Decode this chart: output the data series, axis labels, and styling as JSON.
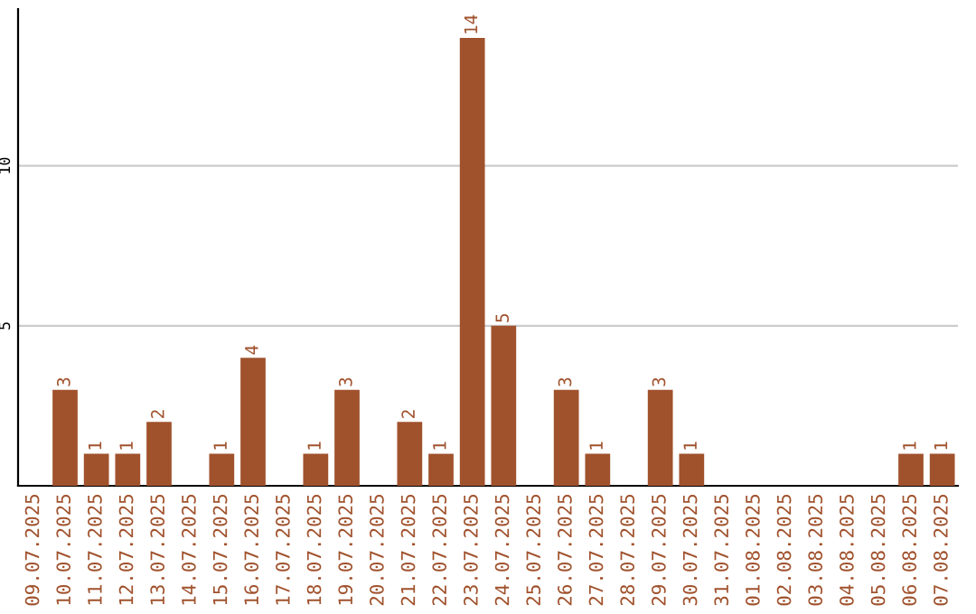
{
  "chart_data": {
    "type": "bar",
    "categories": [
      "09.07.2025",
      "10.07.2025",
      "11.07.2025",
      "12.07.2025",
      "13.07.2025",
      "14.07.2025",
      "15.07.2025",
      "16.07.2025",
      "17.07.2025",
      "18.07.2025",
      "19.07.2025",
      "20.07.2025",
      "21.07.2025",
      "22.07.2025",
      "23.07.2025",
      "24.07.2025",
      "25.07.2025",
      "26.07.2025",
      "27.07.2025",
      "28.07.2025",
      "29.07.2025",
      "30.07.2025",
      "31.07.2025",
      "01.08.2025",
      "02.08.2025",
      "03.08.2025",
      "04.08.2025",
      "05.08.2025",
      "06.08.2025",
      "07.08.2025"
    ],
    "values": [
      0,
      3,
      1,
      1,
      2,
      0,
      1,
      4,
      0,
      1,
      3,
      0,
      2,
      1,
      14,
      5,
      0,
      3,
      1,
      0,
      3,
      1,
      0,
      0,
      0,
      0,
      0,
      0,
      1,
      1
    ],
    "value_labels": [
      null,
      "3",
      "1",
      "1",
      "2",
      null,
      "1",
      "4",
      null,
      "1",
      "3",
      null,
      "2",
      "1",
      "14",
      "5",
      null,
      "3",
      "1",
      null,
      "3",
      "1",
      null,
      null,
      null,
      null,
      null,
      null,
      "1",
      "1"
    ],
    "color": "#a0522d",
    "ylim": [
      0,
      14.9
    ],
    "yticks": [
      5,
      10
    ],
    "grid": "y"
  }
}
